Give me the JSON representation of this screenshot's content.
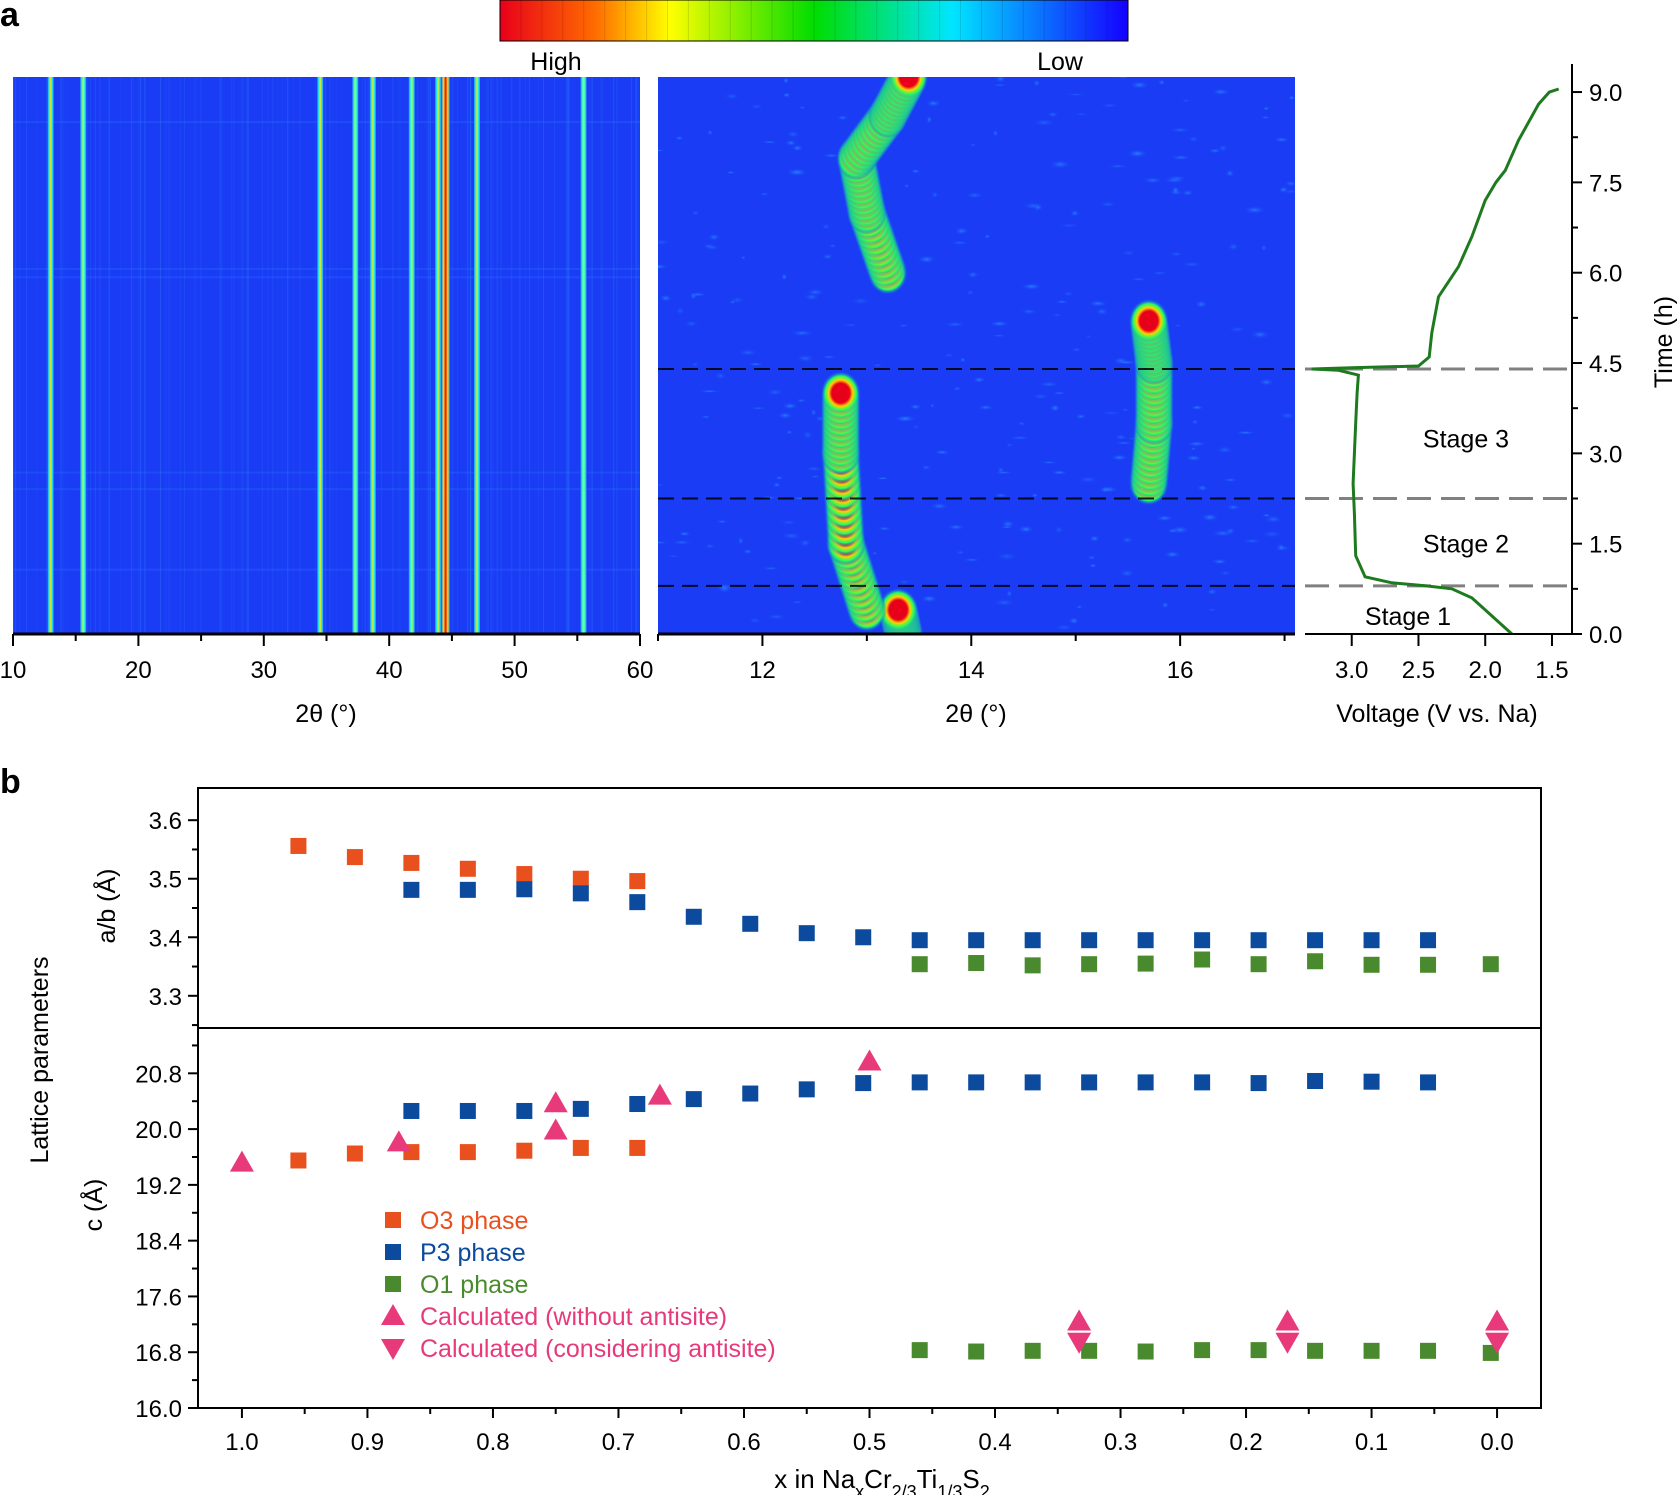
{
  "panel_labels": [
    "a",
    "b"
  ],
  "colorbar": {
    "high_label": "High",
    "low_label": "Low"
  },
  "chart_data": [
    {
      "id": "a-left",
      "type": "heatmap",
      "description": "in-situ XRD contour, full range",
      "xlabel": "2θ (°)",
      "xlim": [
        10,
        60
      ],
      "xticks": [
        "10",
        "20",
        "30",
        "40",
        "50",
        "60"
      ],
      "ylim": [
        0,
        9.25
      ],
      "bright_lines_2theta": [
        13.0,
        15.6,
        34.5,
        37.3,
        38.7,
        41.8,
        43.9,
        44.5,
        47.0,
        55.5
      ]
    },
    {
      "id": "a-middle",
      "type": "heatmap",
      "description": "in-situ XRD contour, zoomed (003) region",
      "xlabel": "2θ (°)",
      "xlim": [
        11.0,
        17.1
      ],
      "xticks": [
        "12",
        "14",
        "16"
      ],
      "ylim": [
        0,
        9.25
      ],
      "peak_tracks": [
        {
          "name": "O3/P3 (003) start",
          "points": [
            [
              13.35,
              0.0
            ],
            [
              13.3,
              0.4
            ]
          ]
        },
        {
          "name": "P3 (003) discharge",
          "points": [
            [
              13.0,
              0.4
            ],
            [
              12.8,
              1.5
            ],
            [
              12.75,
              3.0
            ],
            [
              12.75,
              4.0
            ]
          ]
        },
        {
          "name": "O1 (001)",
          "points": [
            [
              15.7,
              2.5
            ],
            [
              15.75,
              3.5
            ],
            [
              15.75,
              4.5
            ],
            [
              15.7,
              5.2
            ]
          ]
        },
        {
          "name": "P3 (003) recharge",
          "points": [
            [
              13.2,
              6.0
            ],
            [
              13.0,
              7.0
            ],
            [
              12.9,
              7.9
            ],
            [
              13.2,
              8.6
            ],
            [
              13.4,
              9.25
            ]
          ]
        }
      ],
      "dashed_lines_time_h": [
        0.8,
        2.25,
        4.4
      ]
    },
    {
      "id": "a-right",
      "type": "line",
      "xlabel": "Voltage (V vs. Na)",
      "ylabel": "Time (h)",
      "xlim": [
        3.35,
        1.35
      ],
      "xticks": [
        "3.0",
        "2.5",
        "2.0",
        "1.5"
      ],
      "ylim": [
        0,
        9.25
      ],
      "yticks": [
        "0.0",
        "1.5",
        "3.0",
        "4.5",
        "6.0",
        "7.5",
        "9.0"
      ],
      "stages": [
        "Stage 1",
        "Stage 2",
        "Stage 3"
      ],
      "stage_times_h": [
        0.3,
        1.5,
        3.25
      ],
      "series": [
        {
          "name": "voltage profile",
          "points": [
            [
              1.8,
              0.0
            ],
            [
              1.9,
              0.2
            ],
            [
              2.0,
              0.4
            ],
            [
              2.1,
              0.6
            ],
            [
              2.25,
              0.75
            ],
            [
              2.45,
              0.8
            ],
            [
              2.7,
              0.85
            ],
            [
              2.9,
              0.95
            ],
            [
              2.97,
              1.3
            ],
            [
              2.98,
              2.0
            ],
            [
              2.99,
              2.5
            ],
            [
              2.98,
              3.0
            ],
            [
              2.97,
              3.5
            ],
            [
              2.96,
              4.0
            ],
            [
              2.95,
              4.3
            ],
            [
              3.1,
              4.38
            ],
            [
              3.3,
              4.4
            ],
            [
              3.0,
              4.42
            ],
            [
              2.5,
              4.45
            ],
            [
              2.42,
              4.6
            ],
            [
              2.4,
              5.0
            ],
            [
              2.35,
              5.6
            ],
            [
              2.2,
              6.1
            ],
            [
              2.1,
              6.6
            ],
            [
              2.0,
              7.2
            ],
            [
              1.92,
              7.5
            ],
            [
              1.85,
              7.7
            ],
            [
              1.75,
              8.2
            ],
            [
              1.6,
              8.8
            ],
            [
              1.52,
              9.0
            ],
            [
              1.45,
              9.05
            ]
          ]
        }
      ],
      "dashed_lines_time_h": [
        0.8,
        2.25,
        4.4
      ]
    },
    {
      "id": "b-top",
      "type": "scatter",
      "ylabel": "a/b (Å)",
      "xlim": [
        1.035,
        -0.035
      ],
      "ylim": [
        3.245,
        3.655
      ],
      "yticks": [
        "3.3",
        "3.4",
        "3.5",
        "3.6"
      ],
      "series": [
        {
          "name": "O3 phase",
          "color": "#e8501e",
          "marker": "square",
          "x": [
            0.955,
            0.91,
            0.865,
            0.82,
            0.775,
            0.73,
            0.685
          ],
          "y": [
            3.556,
            3.537,
            3.527,
            3.517,
            3.508,
            3.5,
            3.496
          ]
        },
        {
          "name": "P3 phase",
          "color": "#0b4a9c",
          "marker": "square",
          "x": [
            0.865,
            0.82,
            0.775,
            0.73,
            0.685,
            0.64,
            0.595,
            0.55,
            0.505,
            0.46,
            0.415,
            0.37,
            0.325,
            0.28,
            0.235,
            0.19,
            0.145,
            0.1,
            0.055
          ],
          "y": [
            3.481,
            3.481,
            3.482,
            3.475,
            3.46,
            3.435,
            3.423,
            3.407,
            3.4,
            3.395,
            3.395,
            3.395,
            3.395,
            3.395,
            3.395,
            3.395,
            3.395,
            3.395,
            3.395
          ]
        },
        {
          "name": "O1 phase",
          "color": "#4a8a2e",
          "marker": "square",
          "x": [
            0.46,
            0.415,
            0.37,
            0.325,
            0.28,
            0.235,
            0.19,
            0.145,
            0.1,
            0.055,
            0.005
          ],
          "y": [
            3.354,
            3.356,
            3.352,
            3.354,
            3.355,
            3.362,
            3.354,
            3.359,
            3.353,
            3.353,
            3.354
          ]
        }
      ]
    },
    {
      "id": "b-bottom",
      "type": "scatter",
      "ylabel": "c (Å)",
      "shared_ylabel": "Lattice parameters",
      "xlabel": "x in NaxCr2/3Ti1/3S2",
      "xlim": [
        1.035,
        -0.035
      ],
      "xticks": [
        "1.0",
        "0.9",
        "0.8",
        "0.7",
        "0.6",
        "0.5",
        "0.4",
        "0.3",
        "0.2",
        "0.1",
        "0.0"
      ],
      "ylim": [
        16.0,
        21.45
      ],
      "yticks": [
        "16.0",
        "16.8",
        "17.6",
        "18.4",
        "19.2",
        "20.0",
        "20.8"
      ],
      "series": [
        {
          "name": "O3 phase",
          "color": "#e8501e",
          "marker": "square",
          "x": [
            0.955,
            0.91,
            0.865,
            0.82,
            0.775,
            0.73,
            0.685
          ],
          "y": [
            19.55,
            19.65,
            19.67,
            19.67,
            19.69,
            19.73,
            19.73
          ]
        },
        {
          "name": "P3 phase",
          "color": "#0b4a9c",
          "marker": "square",
          "x": [
            0.865,
            0.82,
            0.775,
            0.73,
            0.685,
            0.64,
            0.595,
            0.55,
            0.505,
            0.46,
            0.415,
            0.37,
            0.325,
            0.28,
            0.235,
            0.19,
            0.145,
            0.1,
            0.055
          ],
          "y": [
            20.26,
            20.26,
            20.26,
            20.29,
            20.36,
            20.43,
            20.51,
            20.57,
            20.66,
            20.67,
            20.67,
            20.67,
            20.67,
            20.67,
            20.67,
            20.66,
            20.69,
            20.68,
            20.67
          ]
        },
        {
          "name": "O1 phase",
          "color": "#4a8a2e",
          "marker": "square",
          "x": [
            0.46,
            0.415,
            0.37,
            0.325,
            0.28,
            0.235,
            0.19,
            0.145,
            0.1,
            0.055,
            0.005
          ],
          "y": [
            16.83,
            16.81,
            16.82,
            16.82,
            16.81,
            16.83,
            16.83,
            16.82,
            16.82,
            16.82,
            16.79
          ]
        },
        {
          "name": "Calculated (without antisite)",
          "color": "#e8397a",
          "marker": "triangle-up",
          "x": [
            1.0,
            0.875,
            0.75,
            0.75,
            0.667,
            0.5,
            0.333,
            0.167,
            0.0
          ],
          "y": [
            19.52,
            19.81,
            19.98,
            20.37,
            20.48,
            20.97,
            17.24,
            17.24,
            17.24
          ]
        },
        {
          "name": "Calculated (considering antisite)",
          "color": "#e8397a",
          "marker": "triangle-down",
          "x": [
            0.333,
            0.167,
            0.0
          ],
          "y": [
            16.95,
            16.95,
            16.95
          ]
        }
      ],
      "legend": {
        "position": "lower-left",
        "items": [
          {
            "label": "O3 phase",
            "color": "#e8501e",
            "marker": "square"
          },
          {
            "label": "P3 phase",
            "color": "#0b4a9c",
            "marker": "square"
          },
          {
            "label": "O1 phase",
            "color": "#4a8a2e",
            "marker": "square"
          },
          {
            "label": "Calculated (without antisite)",
            "color": "#e8397a",
            "marker": "triangle-up"
          },
          {
            "label": "Calculated (considering antisite)",
            "color": "#e8397a",
            "marker": "triangle-down"
          }
        ]
      }
    }
  ]
}
